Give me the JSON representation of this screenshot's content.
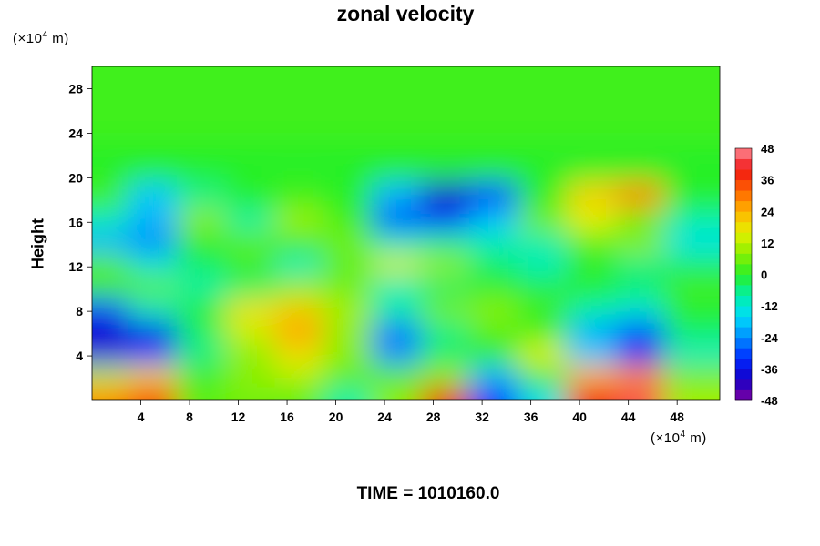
{
  "title": "zonal velocity",
  "time_label": "TIME = 1010160.0",
  "chart_data": {
    "type": "heatmap",
    "title": "zonal velocity",
    "xlabel": "",
    "ylabel": "Height",
    "x_unit": "m",
    "x_unit_exponent": "4",
    "x_unit_prefix": "(×10",
    "y_unit": "m",
    "y_unit_exponent": "4",
    "y_unit_prefix": "(×10",
    "xlim": [
      0,
      51.5
    ],
    "ylim": [
      0,
      30
    ],
    "xticks": [
      4,
      8,
      12,
      16,
      20,
      24,
      28,
      32,
      36,
      40,
      44,
      48
    ],
    "yticks": [
      4,
      8,
      12,
      16,
      20,
      24,
      28
    ],
    "colorbar": {
      "min": -48,
      "max": 48,
      "step": 4,
      "ticks": [
        48,
        36,
        24,
        12,
        0,
        -12,
        -24,
        -36,
        -48
      ]
    },
    "x": [
      2,
      6,
      10,
      14,
      18,
      22,
      26,
      30,
      34,
      38,
      42,
      46,
      50
    ],
    "y": [
      1,
      3,
      5,
      7,
      9,
      11,
      13,
      15,
      17,
      19,
      22,
      26,
      29
    ],
    "values": [
      [
        28,
        36,
        4,
        6,
        4,
        -8,
        8,
        40,
        -32,
        -14,
        40,
        44,
        10
      ],
      [
        12,
        20,
        2,
        8,
        12,
        4,
        4,
        8,
        -20,
        2,
        24,
        28,
        6
      ],
      [
        -36,
        -30,
        -6,
        8,
        18,
        8,
        -24,
        -4,
        0,
        16,
        -18,
        -34,
        -10
      ],
      [
        -40,
        -36,
        -4,
        14,
        26,
        8,
        -26,
        -6,
        4,
        0,
        -20,
        -30,
        -4
      ],
      [
        -30,
        -10,
        0,
        18,
        20,
        10,
        -8,
        6,
        8,
        2,
        -8,
        -12,
        0
      ],
      [
        2,
        4,
        -8,
        -4,
        8,
        6,
        -10,
        -4,
        0,
        -2,
        0,
        -4,
        2
      ],
      [
        4,
        -12,
        -4,
        2,
        -10,
        4,
        14,
        8,
        -4,
        -10,
        0,
        -6,
        -4
      ],
      [
        -20,
        -24,
        0,
        4,
        2,
        6,
        -10,
        -6,
        -10,
        -8,
        4,
        8,
        -14
      ],
      [
        -10,
        -20,
        8,
        -8,
        10,
        2,
        -30,
        -30,
        -18,
        6,
        16,
        4,
        -8
      ],
      [
        2,
        -18,
        -6,
        0,
        2,
        0,
        -20,
        -40,
        -30,
        0,
        20,
        28,
        0
      ],
      [
        0,
        0,
        0,
        0,
        0,
        0,
        0,
        0,
        0,
        0,
        0,
        0,
        0
      ],
      [
        2,
        2,
        2,
        2,
        2,
        2,
        2,
        2,
        2,
        2,
        2,
        2,
        2
      ],
      [
        2,
        2,
        2,
        2,
        2,
        2,
        2,
        2,
        2,
        2,
        2,
        2,
        2
      ]
    ]
  }
}
